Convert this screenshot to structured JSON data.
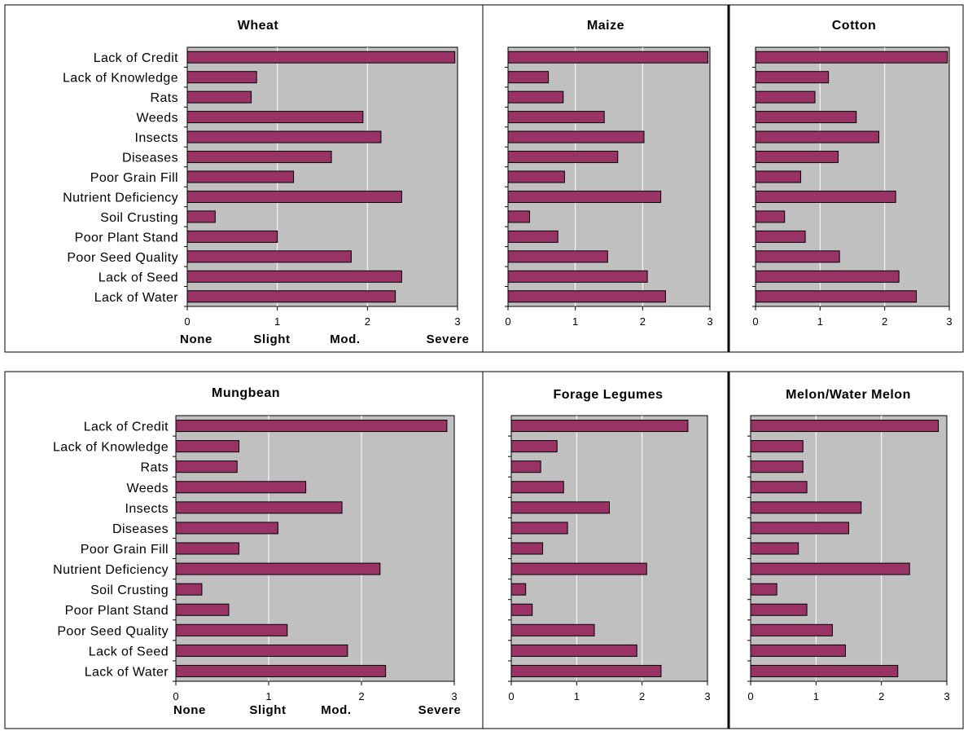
{
  "chart_data": [
    {
      "type": "bar",
      "orientation": "horizontal",
      "title": "Wheat",
      "categories": [
        "Lack of Credit",
        "Lack of Knowledge",
        "Rats",
        "Weeds",
        "Insects",
        "Diseases",
        "Poor Grain Fill",
        "Nutrient Deficiency",
        "Soil Crusting",
        "Poor Plant Stand",
        "Poor Seed Quality",
        "Lack of Seed",
        "Lack of Water"
      ],
      "values": [
        2.97,
        0.77,
        0.71,
        1.95,
        2.15,
        1.6,
        1.18,
        2.38,
        0.31,
        1.0,
        1.82,
        2.38,
        2.31
      ],
      "xlim": [
        0,
        3
      ],
      "xticks": [
        "0",
        "1",
        "2",
        "3"
      ],
      "severity_labels": [
        "None",
        "Slight",
        "Mod.",
        "Severe"
      ]
    },
    {
      "type": "bar",
      "orientation": "horizontal",
      "title": "Maize",
      "categories": [
        "Lack of Credit",
        "Lack of Knowledge",
        "Rats",
        "Weeds",
        "Insects",
        "Diseases",
        "Poor Grain Fill",
        "Nutrient Deficiency",
        "Soil Crusting",
        "Poor Plant Stand",
        "Poor Seed Quality",
        "Lack of Seed",
        "Lack of Water"
      ],
      "values": [
        2.97,
        0.6,
        0.82,
        1.43,
        2.02,
        1.63,
        0.84,
        2.27,
        0.32,
        0.74,
        1.48,
        2.07,
        2.34
      ],
      "xlim": [
        0,
        3
      ],
      "xticks": [
        "0",
        "1",
        "2",
        "3"
      ]
    },
    {
      "type": "bar",
      "orientation": "horizontal",
      "title": "Cotton",
      "categories": [
        "Lack of Credit",
        "Lack of Knowledge",
        "Rats",
        "Weeds",
        "Insects",
        "Diseases",
        "Poor Grain Fill",
        "Nutrient Deficiency",
        "Soil Crusting",
        "Poor Plant Stand",
        "Poor Seed Quality",
        "Lack of Seed",
        "Lack of Water"
      ],
      "values": [
        2.97,
        1.13,
        0.92,
        1.56,
        1.91,
        1.28,
        0.7,
        2.17,
        0.45,
        0.77,
        1.3,
        2.22,
        2.49
      ],
      "xlim": [
        0,
        3
      ],
      "xticks": [
        "0",
        "1",
        "2",
        "3"
      ]
    },
    {
      "type": "bar",
      "orientation": "horizontal",
      "title": "Mungbean",
      "categories": [
        "Lack of Credit",
        "Lack of Knowledge",
        "Rats",
        "Weeds",
        "Insects",
        "Diseases",
        "Poor Grain Fill",
        "Nutrient Deficiency",
        "Soil Crusting",
        "Poor Plant Stand",
        "Poor Seed Quality",
        "Lack of Seed",
        "Lack of Water"
      ],
      "values": [
        2.92,
        0.68,
        0.66,
        1.4,
        1.79,
        1.1,
        0.68,
        2.2,
        0.28,
        0.57,
        1.2,
        1.85,
        2.26
      ],
      "xlim": [
        0,
        3
      ],
      "xticks": [
        "0",
        "1",
        "2",
        "3"
      ],
      "severity_labels": [
        "None",
        "Slight",
        "Mod.",
        "Severe"
      ]
    },
    {
      "type": "bar",
      "orientation": "horizontal",
      "title": "Forage Legumes",
      "categories": [
        "Lack of Credit",
        "Lack of Knowledge",
        "Rats",
        "Weeds",
        "Insects",
        "Diseases",
        "Poor Grain Fill",
        "Nutrient Deficiency",
        "Soil Crusting",
        "Poor Plant Stand",
        "Poor Seed Quality",
        "Lack of Seed",
        "Lack of Water"
      ],
      "values": [
        2.7,
        0.7,
        0.45,
        0.8,
        1.5,
        0.86,
        0.48,
        2.07,
        0.22,
        0.32,
        1.27,
        1.92,
        2.29
      ],
      "xlim": [
        0,
        3
      ],
      "xticks": [
        "0",
        "1",
        "2",
        "3"
      ]
    },
    {
      "type": "bar",
      "orientation": "horizontal",
      "title": "Melon/Water Melon",
      "categories": [
        "Lack of Credit",
        "Lack of Knowledge",
        "Rats",
        "Weeds",
        "Insects",
        "Diseases",
        "Poor Grain Fill",
        "Nutrient Deficiency",
        "Soil Crusting",
        "Poor Plant Stand",
        "Poor Seed Quality",
        "Lack of Seed",
        "Lack of Water"
      ],
      "values": [
        2.87,
        0.8,
        0.8,
        0.86,
        1.69,
        1.5,
        0.73,
        2.43,
        0.4,
        0.86,
        1.25,
        1.45,
        2.25
      ],
      "xlim": [
        0,
        3
      ],
      "xticks": [
        "0",
        "1",
        "2",
        "3"
      ]
    }
  ],
  "colors": {
    "bar": "#993366",
    "plot_background": "#c0c0c0",
    "gridline": "#ffffff"
  }
}
